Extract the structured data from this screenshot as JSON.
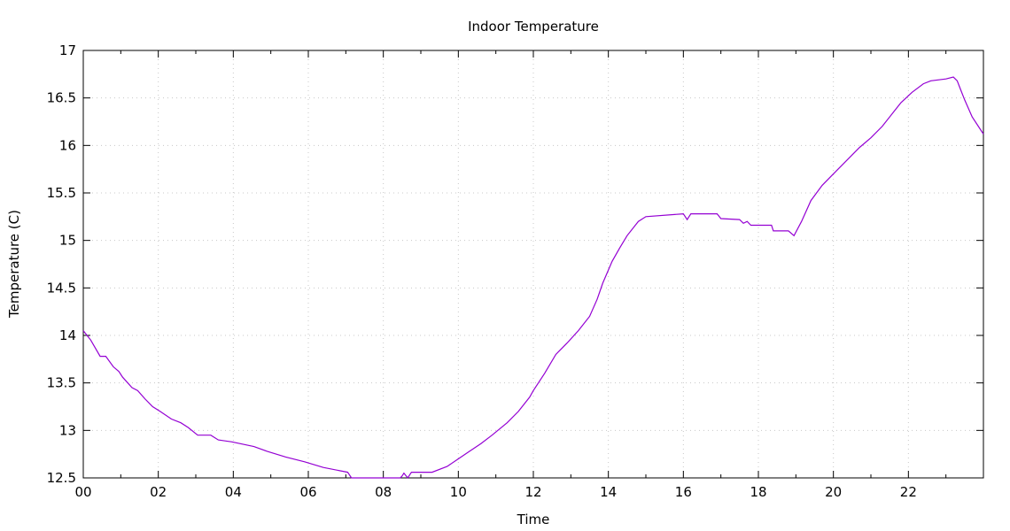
{
  "chart_data": {
    "type": "line",
    "title": "Indoor Temperature",
    "xlabel": "Time",
    "ylabel": "Temperature (C)",
    "xlim": [
      0,
      24
    ],
    "ylim": [
      12.5,
      17
    ],
    "x_ticks": [
      {
        "value": 0,
        "label": "00"
      },
      {
        "value": 2,
        "label": "02"
      },
      {
        "value": 4,
        "label": "04"
      },
      {
        "value": 6,
        "label": "06"
      },
      {
        "value": 8,
        "label": "08"
      },
      {
        "value": 10,
        "label": "10"
      },
      {
        "value": 12,
        "label": "12"
      },
      {
        "value": 14,
        "label": "14"
      },
      {
        "value": 16,
        "label": "16"
      },
      {
        "value": 18,
        "label": "18"
      },
      {
        "value": 20,
        "label": "20"
      },
      {
        "value": 22,
        "label": "22"
      }
    ],
    "y_ticks": [
      {
        "value": 12.5,
        "label": "12.5"
      },
      {
        "value": 13,
        "label": "13"
      },
      {
        "value": 13.5,
        "label": "13.5"
      },
      {
        "value": 14,
        "label": "14"
      },
      {
        "value": 14.5,
        "label": "14.5"
      },
      {
        "value": 15,
        "label": "15"
      },
      {
        "value": 15.5,
        "label": "15.5"
      },
      {
        "value": 16,
        "label": "16"
      },
      {
        "value": 16.5,
        "label": "16.5"
      },
      {
        "value": 17,
        "label": "17"
      }
    ],
    "grid": true,
    "legend": "none",
    "color": "#9400d3",
    "series": [
      {
        "x": [
          0,
          0.2,
          0.45,
          0.6,
          0.8,
          0.95,
          1.05,
          1.3,
          1.45,
          1.65,
          1.85,
          2.05,
          2.35,
          2.6,
          2.8,
          3.05,
          3.4,
          3.6,
          3.95,
          4.55,
          4.9,
          5.4,
          5.9,
          6.4,
          7.05,
          7.15,
          8.45,
          8.5,
          8.55,
          8.65,
          8.75,
          9.3,
          9.7,
          10.0,
          10.3,
          10.6,
          10.9,
          11.3,
          11.6,
          11.9,
          12.0,
          12.3,
          12.6,
          12.9,
          13.2,
          13.5,
          13.7,
          13.85,
          14.1,
          14.3,
          14.5,
          14.8,
          15.0,
          16.0,
          16.1,
          16.2,
          16.9,
          17.0,
          17.5,
          17.6,
          17.7,
          17.8,
          18.35,
          18.4,
          18.8,
          18.95,
          19.15,
          19.4,
          19.7,
          19.95,
          20.2,
          20.5,
          20.7,
          21.0,
          21.3,
          21.6,
          21.8,
          22.1,
          22.4,
          22.6,
          23.0,
          23.2,
          23.3,
          23.4,
          23.5,
          23.7,
          24.0
        ],
        "y": [
          14.05,
          13.95,
          13.78,
          13.78,
          13.67,
          13.62,
          13.56,
          13.45,
          13.42,
          13.33,
          13.25,
          13.2,
          13.12,
          13.08,
          13.03,
          12.95,
          12.95,
          12.9,
          12.88,
          12.83,
          12.78,
          12.72,
          12.67,
          12.61,
          12.56,
          12.5,
          12.5,
          12.52,
          12.55,
          12.5,
          12.56,
          12.56,
          12.62,
          12.7,
          12.78,
          12.86,
          12.95,
          13.08,
          13.2,
          13.35,
          13.42,
          13.6,
          13.8,
          13.92,
          14.05,
          14.2,
          14.38,
          14.55,
          14.78,
          14.92,
          15.05,
          15.2,
          15.25,
          15.28,
          15.22,
          15.28,
          15.28,
          15.23,
          15.22,
          15.18,
          15.2,
          15.16,
          15.16,
          15.1,
          15.1,
          15.05,
          15.2,
          15.42,
          15.58,
          15.68,
          15.78,
          15.9,
          15.98,
          16.08,
          16.2,
          16.35,
          16.45,
          16.56,
          16.65,
          16.68,
          16.7,
          16.72,
          16.68,
          16.58,
          16.48,
          16.3,
          16.12
        ]
      }
    ]
  }
}
